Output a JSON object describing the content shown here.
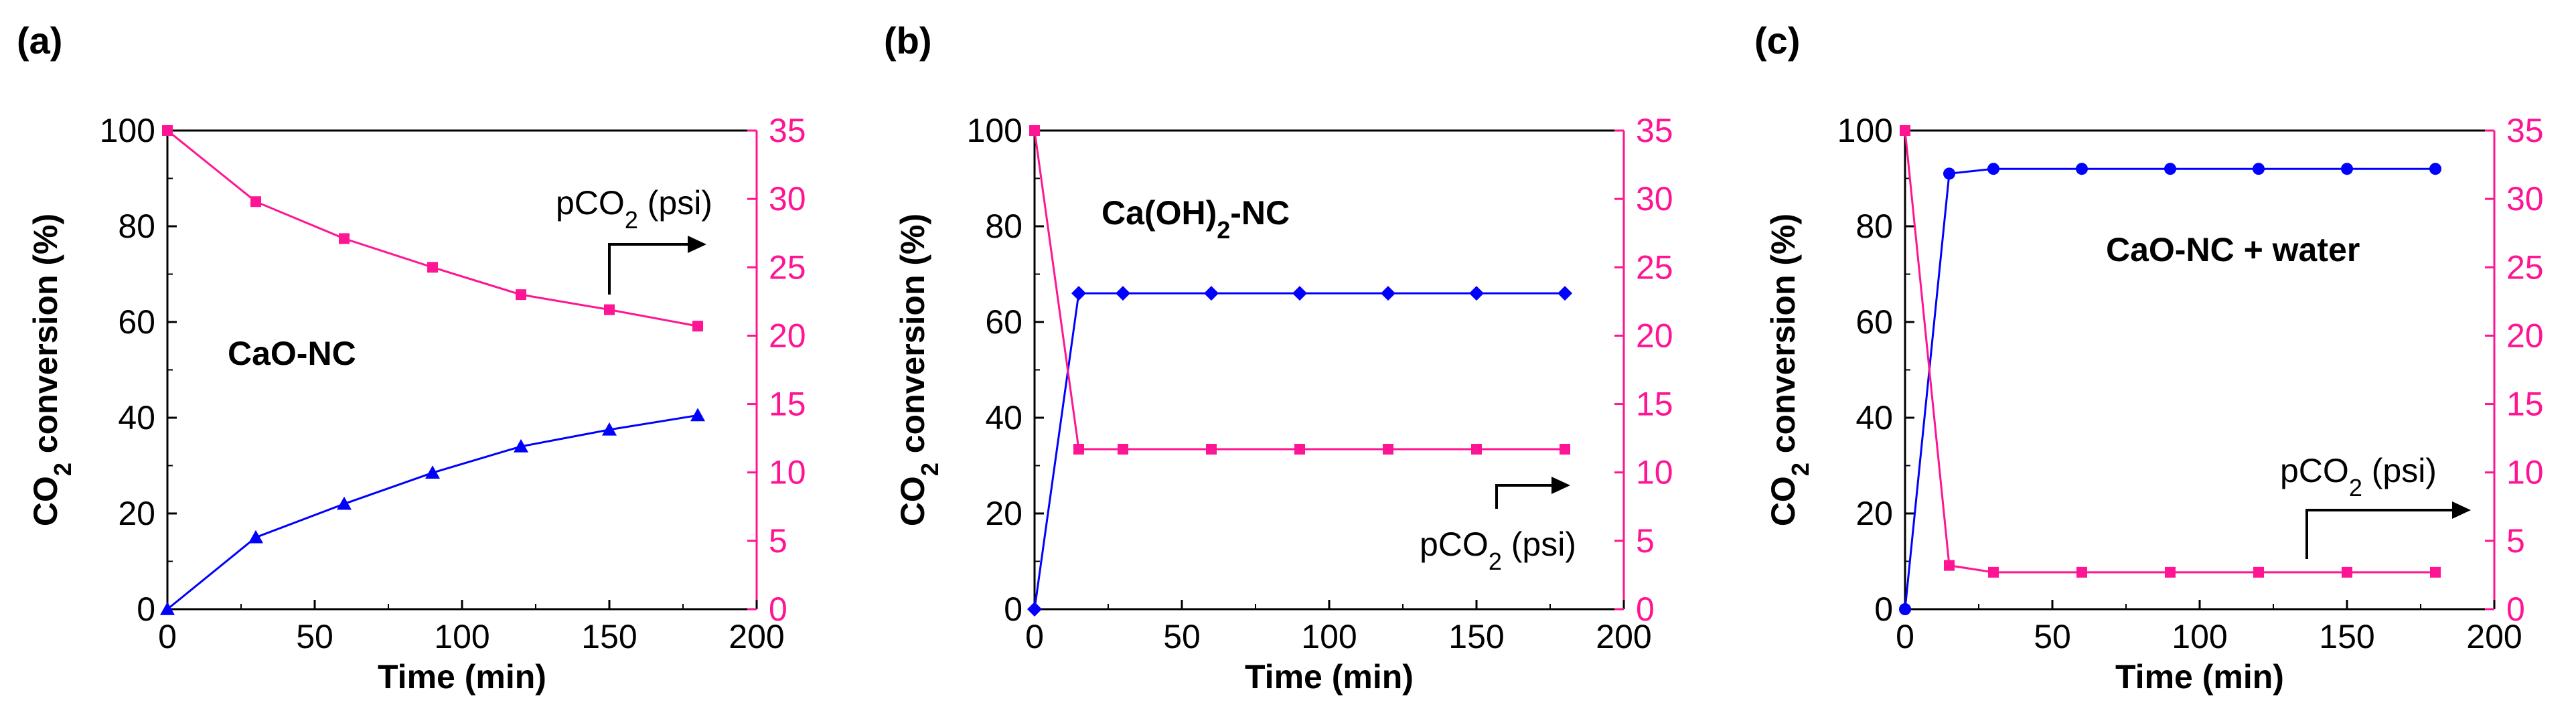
{
  "chart_data": [
    {
      "type": "line",
      "panel_label": "(a)",
      "xlabel": "Time (min)",
      "ylabel_left": "CO2 conversion (%)",
      "ylabel_right": "",
      "xlim": [
        0,
        200
      ],
      "ylim_left": [
        0,
        100
      ],
      "ylim_right": [
        0,
        35
      ],
      "xticks": [
        "0",
        "50",
        "100",
        "150",
        "200"
      ],
      "yticks_left": [
        "0",
        "20",
        "40",
        "60",
        "80",
        "100"
      ],
      "yticks_right": [
        "0",
        "5",
        "10",
        "15",
        "20",
        "25",
        "30",
        "35"
      ],
      "sample_label": "CaO-NC",
      "pco2_label": "pCO2 (psi)",
      "series": [
        {
          "name": "CO2 conversion",
          "axis": "left",
          "color": "#0000ff",
          "marker": "triangle",
          "x": [
            0,
            30,
            60,
            90,
            120,
            150,
            180
          ],
          "values": [
            0,
            15,
            22,
            28.5,
            34,
            37.5,
            40.5
          ]
        },
        {
          "name": "pCO2",
          "axis": "right",
          "color": "#ff1493",
          "marker": "square",
          "x": [
            0,
            30,
            60,
            90,
            120,
            150,
            180
          ],
          "values": [
            35,
            29.8,
            27.1,
            25.0,
            23.0,
            21.9,
            20.7
          ]
        }
      ]
    },
    {
      "type": "line",
      "panel_label": "(b)",
      "xlabel": "Time (min)",
      "ylabel_left": "CO2 conversion (%)",
      "xlim": [
        0,
        200
      ],
      "ylim_left": [
        0,
        100
      ],
      "ylim_right": [
        0,
        35
      ],
      "xticks": [
        "0",
        "50",
        "100",
        "150",
        "200"
      ],
      "yticks_left": [
        "0",
        "20",
        "40",
        "60",
        "80",
        "100"
      ],
      "yticks_right": [
        "0",
        "5",
        "10",
        "15",
        "20",
        "25",
        "30",
        "35"
      ],
      "sample_label": "Ca(OH)2-NC",
      "pco2_label": "pCO2 (psi)",
      "series": [
        {
          "name": "CO2 conversion",
          "axis": "left",
          "color": "#0000ff",
          "marker": "diamond",
          "x": [
            0,
            15,
            30,
            60,
            90,
            120,
            150,
            180
          ],
          "values": [
            0,
            66,
            66,
            66,
            66,
            66,
            66,
            66
          ]
        },
        {
          "name": "pCO2",
          "axis": "right",
          "color": "#ff1493",
          "marker": "square",
          "x": [
            0,
            15,
            30,
            60,
            90,
            120,
            150,
            180
          ],
          "values": [
            35,
            11.7,
            11.7,
            11.7,
            11.7,
            11.7,
            11.7,
            11.7
          ]
        }
      ]
    },
    {
      "type": "line",
      "panel_label": "(c)",
      "xlabel": "Time (min)",
      "ylabel_left": "CO2 conversion (%)",
      "xlim": [
        0,
        200
      ],
      "ylim_left": [
        0,
        100
      ],
      "ylim_right": [
        0,
        35
      ],
      "xticks": [
        "0",
        "50",
        "100",
        "150",
        "200"
      ],
      "yticks_left": [
        "0",
        "20",
        "40",
        "60",
        "80",
        "100"
      ],
      "yticks_right": [
        "0",
        "5",
        "10",
        "15",
        "20",
        "25",
        "30",
        "35"
      ],
      "sample_label": "CaO-NC + water",
      "pco2_label": "pCO2 (psi)",
      "series": [
        {
          "name": "CO2 conversion",
          "axis": "left",
          "color": "#0000ff",
          "marker": "circle",
          "x": [
            0,
            15,
            30,
            60,
            90,
            120,
            150,
            180
          ],
          "values": [
            0,
            91,
            92,
            92,
            92,
            92,
            92,
            92
          ]
        },
        {
          "name": "pCO2",
          "axis": "right",
          "color": "#ff1493",
          "marker": "square",
          "x": [
            0,
            15,
            30,
            60,
            90,
            120,
            150,
            180
          ],
          "values": [
            35,
            3.2,
            2.7,
            2.7,
            2.7,
            2.7,
            2.7,
            2.7
          ]
        }
      ]
    }
  ]
}
